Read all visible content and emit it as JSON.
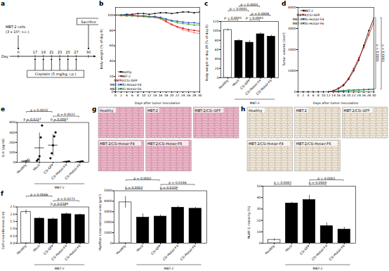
{
  "diagram": {
    "title": "a",
    "cells": "MBT-2 cells",
    "dose": "(3 x 10⁵; s.c.)",
    "end": "Sacrifice",
    "axis_label": "Day",
    "days": [
      0,
      17,
      19,
      21,
      23,
      25,
      27,
      30
    ],
    "treatment_days": [
      17,
      19,
      21,
      23,
      25,
      27
    ],
    "treatment": "Cisplatin (5 mg/kg; i.p.)"
  },
  "chart_data": [
    {
      "title": "b",
      "type": "line",
      "x_label": "Days after tumor inoculation",
      "y_label": "Body weight (% of day 0)",
      "x": [
        0,
        2,
        4,
        6,
        8,
        10,
        12,
        14,
        16,
        18,
        20,
        22,
        24,
        26,
        28,
        30
      ],
      "xlim": [
        0,
        30
      ],
      "xticks": [
        0,
        2,
        4,
        6,
        8,
        10,
        12,
        14,
        16,
        18,
        20,
        22,
        24,
        26,
        28,
        30
      ],
      "ylim": [
        0,
        110
      ],
      "yticks": [
        0,
        20,
        40,
        60,
        80,
        100
      ],
      "legend": "bottom-left",
      "marker": "circle",
      "series": [
        {
          "name": "Healthy",
          "color": "#000000",
          "values": [
            100,
            100,
            101,
            101,
            102,
            102,
            101,
            102,
            103,
            103,
            102,
            103,
            104,
            104,
            103,
            104
          ]
        },
        {
          "name": "MBT-2",
          "color": "#cc0000",
          "values": [
            100,
            100,
            99,
            100,
            99,
            99,
            98,
            98,
            96,
            92,
            88,
            85,
            83,
            81,
            80,
            79
          ]
        },
        {
          "name": "MBT-2/CSi-GFP",
          "color": "#ff6666",
          "values": [
            100,
            99,
            99,
            99,
            98,
            98,
            97,
            97,
            95,
            91,
            87,
            84,
            81,
            79,
            77,
            76
          ]
        },
        {
          "name": "MBT-2/CSi-Hotair-F4",
          "color": "#1f3fbf",
          "values": [
            100,
            100,
            100,
            99,
            99,
            99,
            98,
            98,
            97,
            95,
            93,
            92,
            91,
            90,
            90,
            89
          ]
        },
        {
          "name": "MBT-2/CSi-Hotair-F6",
          "color": "#2ca02c",
          "values": [
            100,
            100,
            99,
            99,
            99,
            98,
            98,
            97,
            96,
            94,
            92,
            90,
            89,
            88,
            87,
            87
          ]
        }
      ]
    },
    {
      "title": "c",
      "type": "bar",
      "y_label": "Body weight at day 29 (% of day 0)",
      "categories": [
        "Healthy",
        "Mock",
        "CSi-GFP",
        "CSi-Hotair-F4",
        "CSi-Hotair-F6"
      ],
      "values": [
        102,
        79,
        75,
        93,
        88
      ],
      "errors": [
        2,
        3,
        4,
        3,
        3
      ],
      "colors": [
        "#ffffff",
        "#000000",
        "#000000",
        "#000000",
        "#000000"
      ],
      "ylim": [
        0,
        120
      ],
      "yticks": [
        0,
        20,
        40,
        60,
        80,
        100,
        120
      ],
      "group": {
        "label": "MBT-2",
        "categories": [
          "Mock",
          "CSi-GFP",
          "CSi-Hotair-F4",
          "CSi-Hotair-F6"
        ]
      },
      "comparisons": [
        {
          "between": [
            "Healthy",
            "Mock"
          ],
          "label": "p < 0.0001"
        },
        {
          "between": [
            "CSi-GFP",
            "CSi-Hotair-F4"
          ],
          "label": "p < 0.0001"
        },
        {
          "between": [
            "CSi-GFP",
            "CSi-Hotair-F6"
          ],
          "label": "p = 0.0008"
        },
        {
          "between": [
            "Healthy",
            "CSi-GFP"
          ],
          "label": "p < 0.0001"
        },
        {
          "between": [
            "Mock",
            "CSi-Hotair-F4"
          ],
          "label": "p < 0.0001"
        }
      ]
    },
    {
      "title": "d",
      "type": "line",
      "x_label": "Days after tumor inoculation",
      "y_label": "Tumor volume (mm³)",
      "x": [
        0,
        2,
        4,
        6,
        8,
        10,
        12,
        14,
        16,
        18,
        20,
        22,
        24,
        26,
        28,
        30
      ],
      "xlim": [
        0,
        30
      ],
      "xticks": [
        0,
        2,
        4,
        6,
        8,
        10,
        12,
        14,
        16,
        18,
        20,
        22,
        24,
        26,
        28,
        30
      ],
      "ylim": [
        0,
        4000
      ],
      "yticks": [
        0,
        1000,
        2000,
        3000,
        4000
      ],
      "legend": "top-left",
      "marker": "circle",
      "series": [
        {
          "name": "MBT-2",
          "color": "#000000",
          "values": [
            0,
            0,
            0,
            0,
            0,
            0,
            0,
            50,
            150,
            300,
            600,
            1000,
            1500,
            2200,
            2900,
            3500
          ]
        },
        {
          "name": "MBT-2/CSi-GFP",
          "color": "#cc0000",
          "values": [
            0,
            0,
            0,
            0,
            0,
            0,
            0,
            60,
            180,
            350,
            650,
            1100,
            1600,
            2100,
            2700,
            3300
          ]
        },
        {
          "name": "MBT-2/CSi-Hotair-F4",
          "color": "#1f3fbf",
          "values": [
            0,
            0,
            0,
            0,
            0,
            0,
            0,
            20,
            40,
            60,
            80,
            90,
            100,
            110,
            120,
            130
          ]
        },
        {
          "name": "MBT-2/CSi-Hotair-F6",
          "color": "#2ca02c",
          "values": [
            0,
            0,
            0,
            0,
            0,
            0,
            0,
            20,
            30,
            50,
            60,
            70,
            80,
            90,
            100,
            110
          ]
        }
      ],
      "comparisons": [
        {
          "between": [
            "MBT-2",
            "MBT-2/CSi-Hotair-F4"
          ],
          "label": "p < 0.0001"
        },
        {
          "between": [
            "MBT-2",
            "MBT-2/CSi-Hotair-F6"
          ],
          "label": "p < 0.0001"
        }
      ]
    },
    {
      "title": "e",
      "type": "scatter",
      "y_label": "IL-6 (pg/ml)",
      "categories": [
        "Healthy",
        "Mock",
        "CSi-GFP",
        "CSi-Hotair-F4",
        "CSi-Hotair-F6"
      ],
      "points": [
        [
          2,
          5,
          8,
          15,
          25
        ],
        [
          15,
          30,
          60,
          250,
          370
        ],
        [
          40,
          90,
          170,
          260,
          300
        ],
        [
          0,
          2,
          3,
          5,
          8
        ],
        [
          1,
          2,
          4,
          6,
          9
        ]
      ],
      "values": [
        11,
        145,
        172,
        3.6,
        4.4
      ],
      "errors": [
        9,
        150,
        108,
        3,
        3
      ],
      "colors": [
        "#ffffff",
        "#000000",
        "#000000",
        "#000000",
        "#000000"
      ],
      "ylim": [
        0,
        400
      ],
      "yticks": [
        0,
        100,
        200,
        300,
        400
      ],
      "group": {
        "label": "MBT-2",
        "categories": [
          "Mock",
          "CSi-GFP",
          "CSi-Hotair-F4",
          "CSi-Hotair-F6"
        ]
      },
      "comparisons": [
        {
          "between": [
            "Healthy",
            "Mock"
          ],
          "label": "p = 0.0237"
        },
        {
          "between": [
            "CSi-GFP",
            "CSi-Hotair-F4"
          ],
          "label": "p = 0.0007"
        },
        {
          "between": [
            "CSi-GFP",
            "CSi-Hotair-F6"
          ],
          "label": "p = 0.0022"
        },
        {
          "between": [
            "Healthy",
            "CSi-GFP"
          ],
          "label": "p = 0.0015"
        }
      ]
    },
    {
      "title": "f",
      "type": "bar",
      "y_label": "Calf circumference (cm)",
      "categories": [
        "Healthy",
        "Mock",
        "CSi-GFP",
        "CSi-Hotair-F4",
        "CSi-Hotair-F6"
      ],
      "values": [
        2.15,
        1.7,
        1.65,
        2.0,
        1.95
      ],
      "errors": [
        0.15,
        0.08,
        0.1,
        0.1,
        0.08
      ],
      "colors": [
        "#ffffff",
        "#000000",
        "#000000",
        "#000000",
        "#000000"
      ],
      "ylim": [
        0,
        2.5
      ],
      "yticks": [
        {
          "value": 0,
          "label": "0.0"
        },
        0.5,
        {
          "value": 1,
          "label": "1.0"
        },
        1.5,
        {
          "value": 2,
          "label": "2.0"
        },
        2.5
      ],
      "group": {
        "label": "MBT-2",
        "categories": [
          "Mock",
          "CSi-GFP",
          "CSi-Hotair-F4",
          "CSi-Hotair-F6"
        ]
      },
      "comparisons": [
        {
          "between": [
            "CSi-GFP",
            "CSi-Hotair-F4"
          ],
          "label": "p = 0.0184"
        },
        {
          "between": [
            "CSi-GFP",
            "CSi-Hotair-F6"
          ],
          "label": "p = 0.0272"
        },
        {
          "between": [
            "Healthy",
            "CSi-GFP"
          ],
          "label": "p = 0.0066"
        }
      ]
    },
    {
      "title": "g",
      "type": "bar",
      "y_label": "Myofiber cross-sectional area (μm²)",
      "image_labels": [
        "Healthy",
        "MBT-2",
        "MBT-2/CSi-GFP",
        "MBT-2/CSi-Hotair-F4",
        "MBT-2/CSi-Hotair-F6"
      ],
      "categories": [
        "Healthy",
        "Mock",
        "CSi-GFP",
        "CSi-Hotair-F4",
        "CSi-Hotair-F6"
      ],
      "values": [
        3900,
        2450,
        2550,
        3400,
        3300
      ],
      "errors": [
        550,
        350,
        150,
        150,
        120
      ],
      "colors": [
        "#ffffff",
        "#000000",
        "#000000",
        "#000000",
        "#000000"
      ],
      "ylim": [
        0,
        5000
      ],
      "yticks": [
        0,
        1000,
        2000,
        3000,
        4000,
        5000
      ],
      "group": {
        "label": "MBT-2",
        "categories": [
          "Mock",
          "CSi-GFP",
          "CSi-Hotair-F4",
          "CSi-Hotair-F6"
        ]
      },
      "comparisons": [
        {
          "between": [
            "Healthy",
            "Mock"
          ],
          "label": "p = 0.0003"
        },
        {
          "between": [
            "CSi-GFP",
            "CSi-Hotair-F4"
          ],
          "label": "p = 0.0109"
        },
        {
          "between": [
            "CSi-GFP",
            "CSi-Hotair-F6"
          ],
          "label": "p = 0.0146"
        },
        {
          "between": [
            "Healthy",
            "CSi-GFP"
          ],
          "label": "p = 0.0002"
        }
      ]
    },
    {
      "title": "h",
      "type": "bar",
      "y_label": "MuRF-1 intensity (%)",
      "image_labels": [
        "Healthy",
        "MBT-2",
        "MBT-2/CSi-GFP",
        "MBT-2/CSi-Hotair-F4",
        "MBT-2/CSi-Hotair-F6"
      ],
      "categories": [
        "Healthy",
        "Mock",
        "CSi-GFP",
        "CSi-Hotair-F4",
        "CSi-Hotair-F6"
      ],
      "values": [
        3,
        35,
        38,
        15,
        12
      ],
      "errors": [
        1,
        1,
        4,
        3,
        2
      ],
      "colors": [
        "#ffffff",
        "#000000",
        "#000000",
        "#000000",
        "#000000"
      ],
      "ylim": [
        0,
        50
      ],
      "yticks": [
        0,
        10,
        20,
        30,
        40,
        50
      ],
      "group": {
        "label": "MBT-2",
        "categories": [
          "Mock",
          "CSi-GFP",
          "CSi-Hotair-F4",
          "CSi-Hotair-F6"
        ]
      },
      "comparisons": [
        {
          "between": [
            "CSi-GFP",
            "CSi-Hotair-F4"
          ],
          "label": "p = 0.0004"
        },
        {
          "between": [
            "Healthy",
            "Mock"
          ],
          "label": "p < 0.0001"
        },
        {
          "between": [
            "CSi-GFP",
            "CSi-Hotair-F6"
          ],
          "label": "p < 0.0001"
        }
      ]
    }
  ]
}
